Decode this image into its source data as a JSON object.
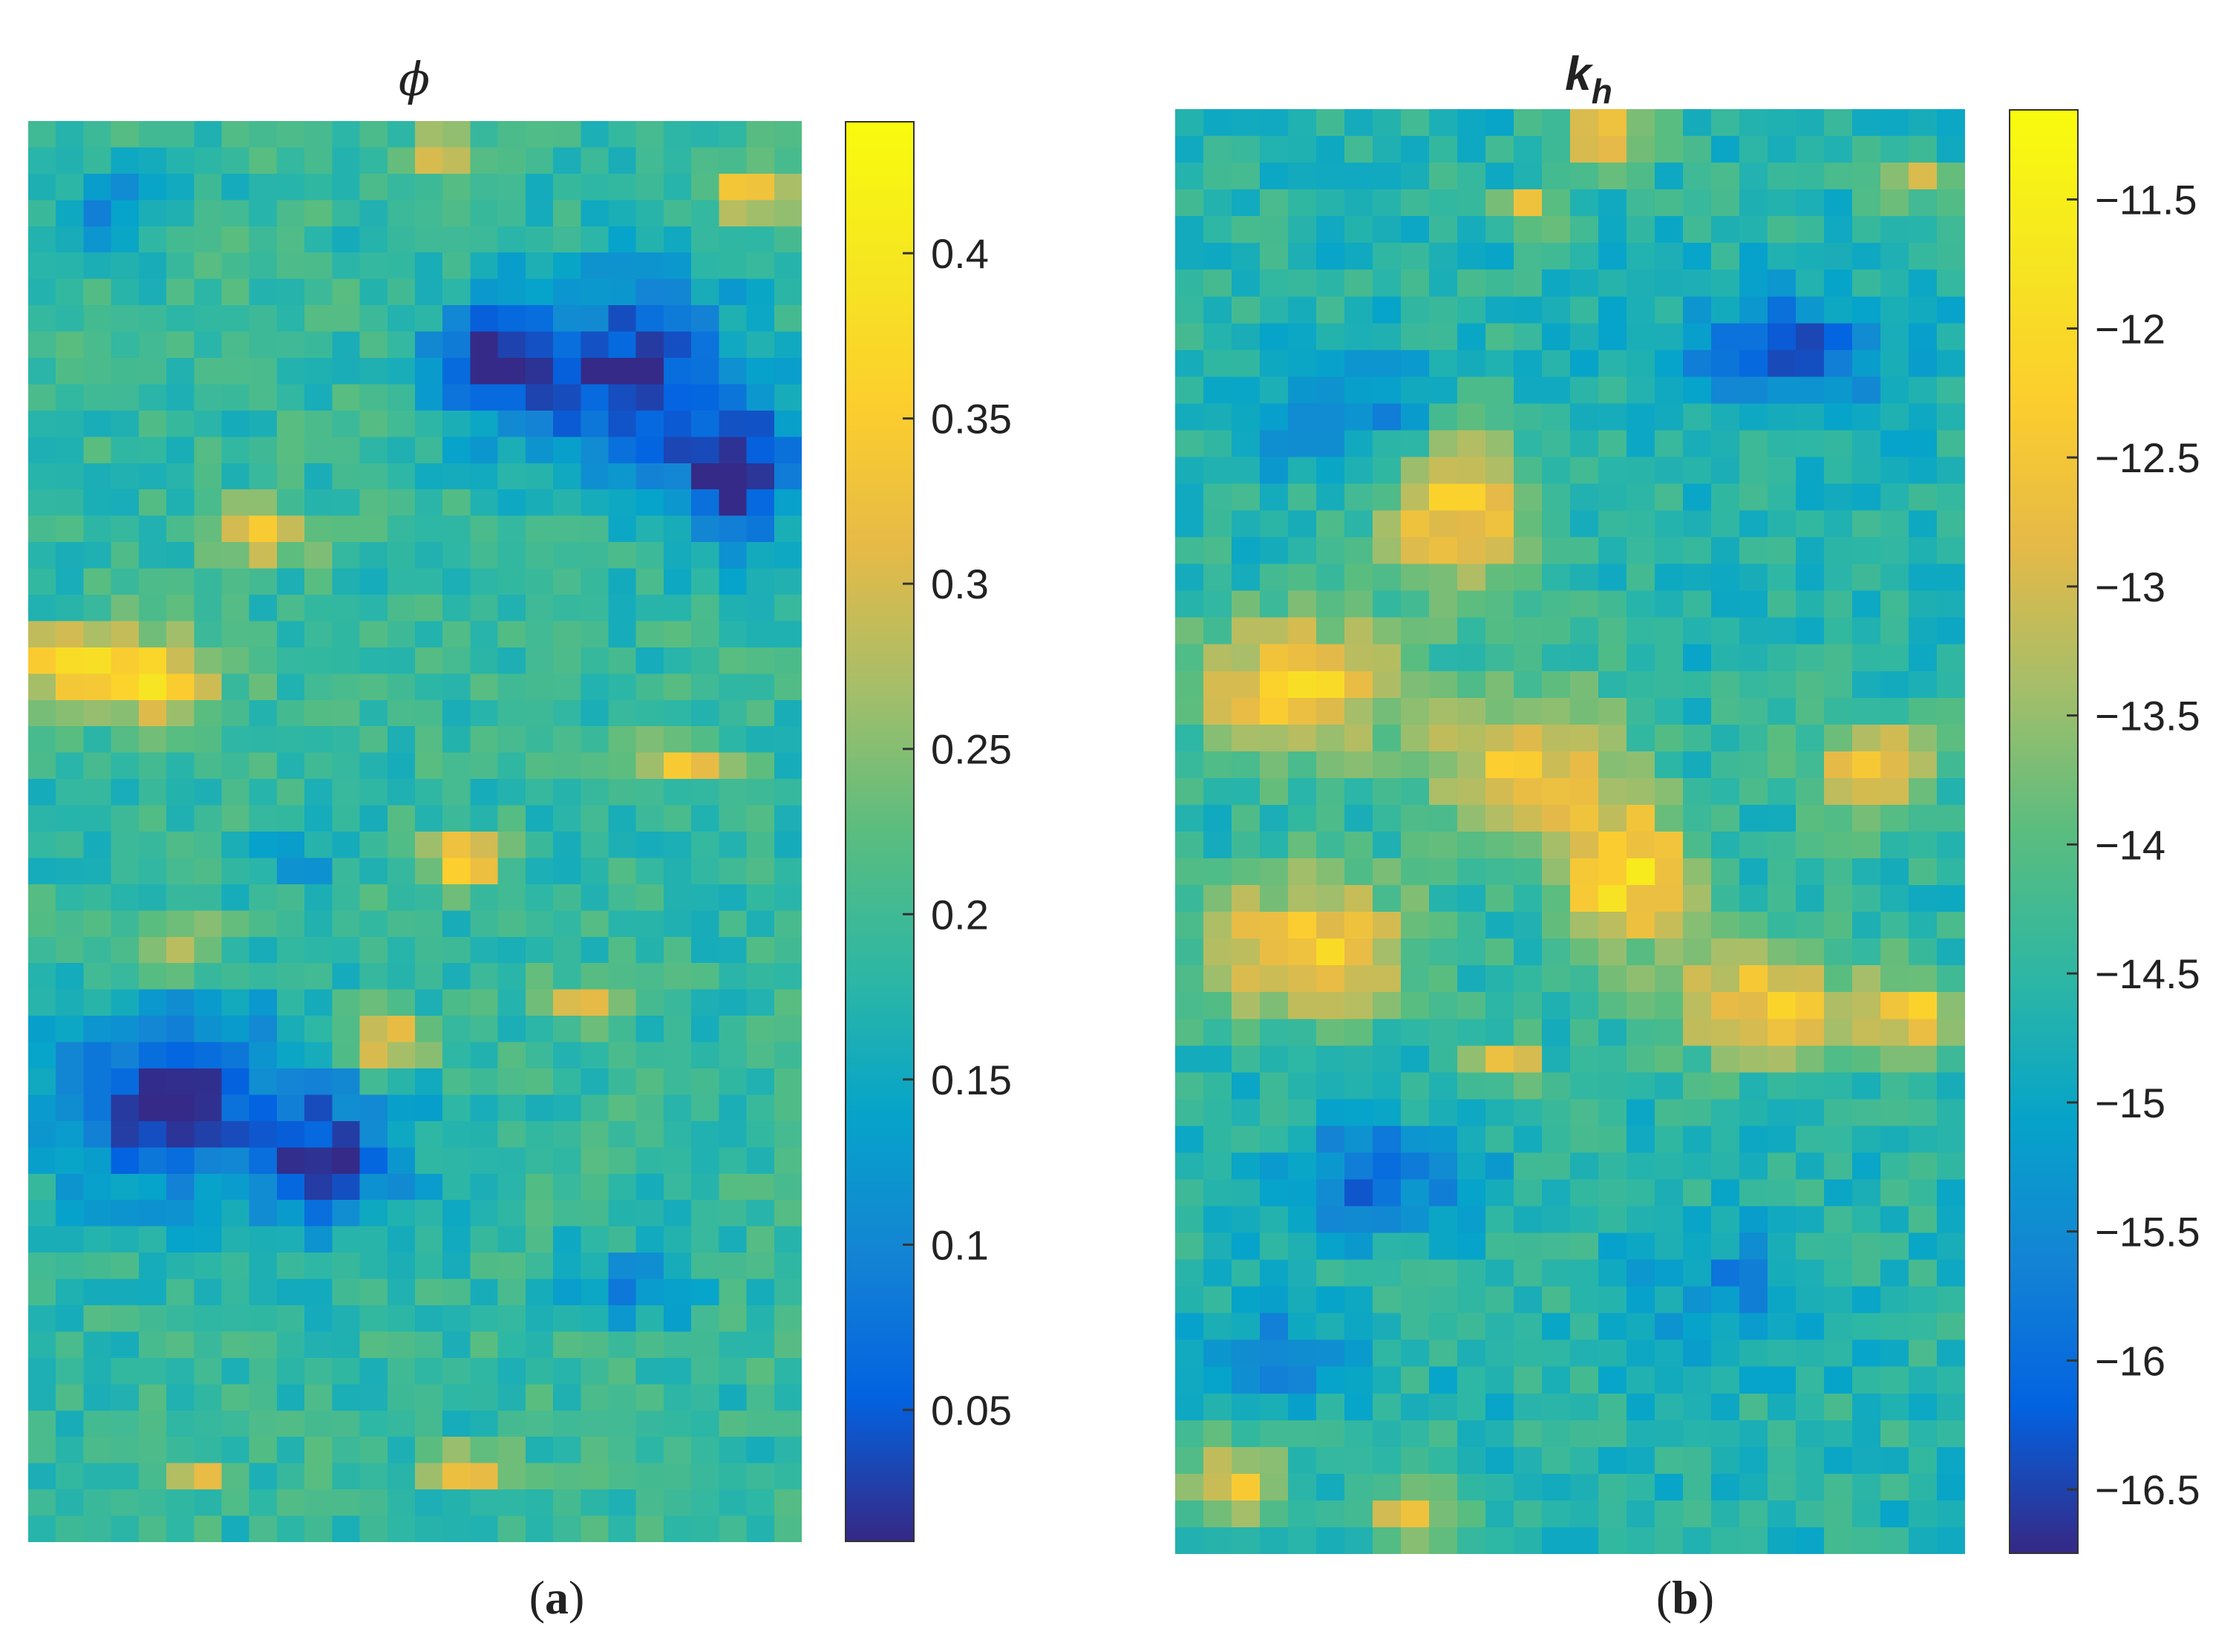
{
  "chart_data": [
    {
      "type": "heatmap",
      "title": "ϕ",
      "caption_letter": "a",
      "colormap": "parula",
      "colorbar": {
        "clim": [
          0.01,
          0.44
        ],
        "ticks": [
          0.05,
          0.1,
          0.15,
          0.2,
          0.25,
          0.3,
          0.35,
          0.4
        ],
        "tick_labels": [
          "0.05",
          "0.1",
          "0.15",
          "0.2",
          "0.25",
          "0.3",
          "0.35",
          "0.4"
        ]
      },
      "grid": [
        28,
        54
      ],
      "field_background": 0.19,
      "features": [
        {
          "x": 0.77,
          "y": 0.18,
          "sx": 0.15,
          "sy": 0.07,
          "v": 0.02
        },
        {
          "x": 0.6,
          "y": 0.17,
          "sx": 0.08,
          "sy": 0.04,
          "v": 0.04
        },
        {
          "x": 0.92,
          "y": 0.25,
          "sx": 0.08,
          "sy": 0.05,
          "v": 0.03
        },
        {
          "x": 0.18,
          "y": 0.69,
          "sx": 0.16,
          "sy": 0.07,
          "v": 0.02
        },
        {
          "x": 0.4,
          "y": 0.73,
          "sx": 0.1,
          "sy": 0.05,
          "v": 0.04
        },
        {
          "x": 0.14,
          "y": 0.39,
          "sx": 0.1,
          "sy": 0.03,
          "v": 0.38
        },
        {
          "x": 0.03,
          "y": 0.38,
          "sx": 0.05,
          "sy": 0.02,
          "v": 0.34
        },
        {
          "x": 0.3,
          "y": 0.29,
          "sx": 0.07,
          "sy": 0.02,
          "v": 0.33
        },
        {
          "x": 0.56,
          "y": 0.52,
          "sx": 0.05,
          "sy": 0.02,
          "v": 0.36
        },
        {
          "x": 0.46,
          "y": 0.65,
          "sx": 0.05,
          "sy": 0.02,
          "v": 0.36
        },
        {
          "x": 0.19,
          "y": 0.58,
          "sx": 0.06,
          "sy": 0.02,
          "v": 0.33
        },
        {
          "x": 0.94,
          "y": 0.05,
          "sx": 0.05,
          "sy": 0.02,
          "v": 0.36
        },
        {
          "x": 0.54,
          "y": 0.02,
          "sx": 0.04,
          "sy": 0.015,
          "v": 0.35
        },
        {
          "x": 0.85,
          "y": 0.45,
          "sx": 0.06,
          "sy": 0.015,
          "v": 0.33
        },
        {
          "x": 0.72,
          "y": 0.62,
          "sx": 0.06,
          "sy": 0.015,
          "v": 0.31
        },
        {
          "x": 0.57,
          "y": 0.95,
          "sx": 0.06,
          "sy": 0.015,
          "v": 0.33
        },
        {
          "x": 0.22,
          "y": 0.95,
          "sx": 0.03,
          "sy": 0.01,
          "v": 0.33
        },
        {
          "x": 0.1,
          "y": 0.06,
          "sx": 0.08,
          "sy": 0.03,
          "v": 0.12
        },
        {
          "x": 0.78,
          "y": 0.82,
          "sx": 0.08,
          "sy": 0.03,
          "v": 0.11
        },
        {
          "x": 0.35,
          "y": 0.52,
          "sx": 0.05,
          "sy": 0.02,
          "v": 0.12
        }
      ]
    },
    {
      "type": "heatmap",
      "title": "k",
      "title_subscript": "h",
      "caption_letter": "b",
      "colormap": "parula",
      "colorbar": {
        "clim": [
          -16.75,
          -11.15
        ],
        "ticks": [
          -16.5,
          -16,
          -15.5,
          -15,
          -14.5,
          -14,
          -13.5,
          -13,
          -12.5,
          -12,
          -11.5
        ],
        "tick_labels": [
          "−16.5",
          "−16",
          "−15.5",
          "−15",
          "−14.5",
          "−14",
          "−13.5",
          "−13",
          "−12.5",
          "−12",
          "−11.5"
        ]
      },
      "grid": [
        28,
        54
      ],
      "field_background": -14.6,
      "features": [
        {
          "x": 0.15,
          "y": 0.4,
          "sx": 0.12,
          "sy": 0.05,
          "v": -12.1
        },
        {
          "x": 0.36,
          "y": 0.28,
          "sx": 0.1,
          "sy": 0.06,
          "v": -12.4
        },
        {
          "x": 0.44,
          "y": 0.45,
          "sx": 0.12,
          "sy": 0.05,
          "v": -12.5
        },
        {
          "x": 0.57,
          "y": 0.53,
          "sx": 0.09,
          "sy": 0.05,
          "v": -11.9
        },
        {
          "x": 0.75,
          "y": 0.62,
          "sx": 0.12,
          "sy": 0.04,
          "v": -12.4
        },
        {
          "x": 0.17,
          "y": 0.58,
          "sx": 0.13,
          "sy": 0.05,
          "v": -12.3
        },
        {
          "x": 0.88,
          "y": 0.46,
          "sx": 0.08,
          "sy": 0.04,
          "v": -12.6
        },
        {
          "x": 0.94,
          "y": 0.63,
          "sx": 0.06,
          "sy": 0.03,
          "v": -12.5
        },
        {
          "x": 0.42,
          "y": 0.66,
          "sx": 0.04,
          "sy": 0.015,
          "v": -12.2
        },
        {
          "x": 0.55,
          "y": 0.02,
          "sx": 0.06,
          "sy": 0.02,
          "v": -12.4
        },
        {
          "x": 0.45,
          "y": 0.07,
          "sx": 0.04,
          "sy": 0.015,
          "v": -12.5
        },
        {
          "x": 0.94,
          "y": 0.05,
          "sx": 0.05,
          "sy": 0.015,
          "v": -12.6
        },
        {
          "x": 0.08,
          "y": 0.95,
          "sx": 0.06,
          "sy": 0.03,
          "v": -12.7
        },
        {
          "x": 0.3,
          "y": 0.97,
          "sx": 0.05,
          "sy": 0.02,
          "v": -12.8
        },
        {
          "x": 0.78,
          "y": 0.17,
          "sx": 0.13,
          "sy": 0.04,
          "v": -16.3
        },
        {
          "x": 0.22,
          "y": 0.21,
          "sx": 0.12,
          "sy": 0.04,
          "v": -15.8
        },
        {
          "x": 0.25,
          "y": 0.74,
          "sx": 0.12,
          "sy": 0.04,
          "v": -16.0
        },
        {
          "x": 0.7,
          "y": 0.82,
          "sx": 0.1,
          "sy": 0.04,
          "v": -15.6
        },
        {
          "x": 0.12,
          "y": 0.86,
          "sx": 0.1,
          "sy": 0.03,
          "v": -15.7
        }
      ]
    }
  ]
}
